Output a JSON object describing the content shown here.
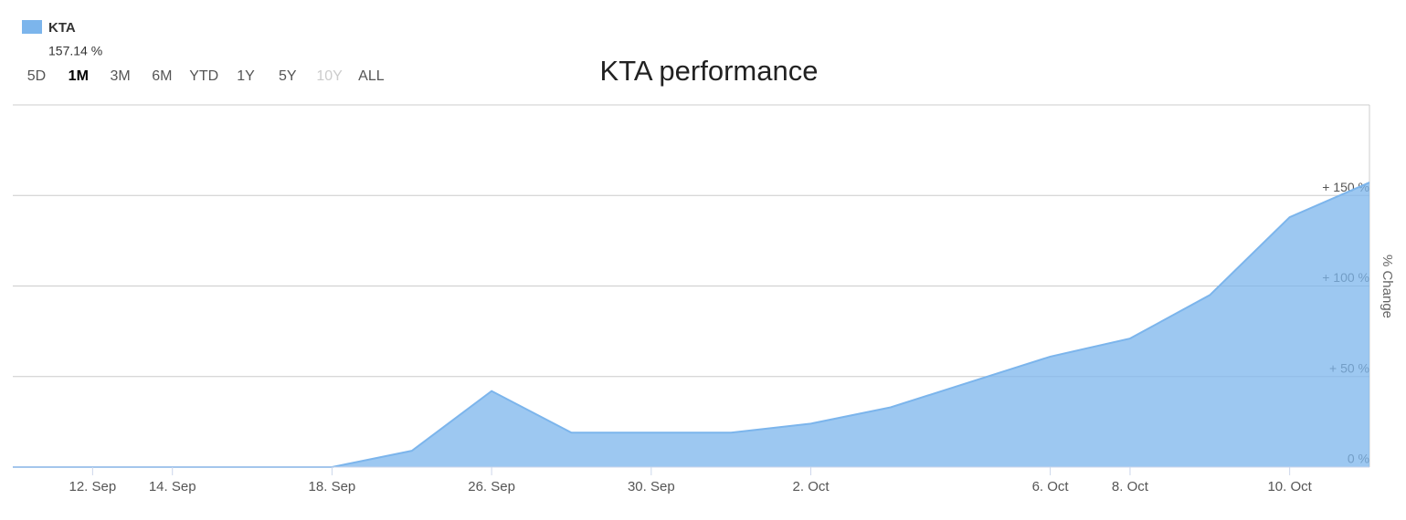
{
  "chart_data": {
    "type": "area",
    "title": "KTA performance",
    "y_axis_label": "% Change",
    "categories": [
      null,
      "12. Sep",
      "14. Sep",
      null,
      "18. Sep",
      null,
      "26. Sep",
      null,
      "30. Sep",
      null,
      "2. Oct",
      null,
      null,
      "6. Oct",
      "8. Oct",
      null,
      "10. Oct",
      null
    ],
    "series": [
      {
        "name": "KTA",
        "color": "#7cb5ec",
        "values": [
          0,
          0,
          0,
          0,
          0,
          9,
          42,
          19,
          19,
          19,
          24,
          33,
          47,
          61,
          71,
          95,
          138,
          157.14
        ]
      }
    ],
    "legend_value": "157.14 %",
    "ylim": [
      0,
      200
    ],
    "yticks": [
      {
        "value": 0,
        "label": "0 %"
      },
      {
        "value": 50,
        "label": "+ 50 %"
      },
      {
        "value": 100,
        "label": "+ 100 %"
      },
      {
        "value": 150,
        "label": "+ 150 %"
      }
    ],
    "grid": true
  },
  "range_selector": {
    "options": [
      "5D",
      "1M",
      "3M",
      "6M",
      "YTD",
      "1Y",
      "5Y",
      "10Y",
      "ALL"
    ],
    "selected": 1,
    "disabled": [
      7
    ]
  }
}
